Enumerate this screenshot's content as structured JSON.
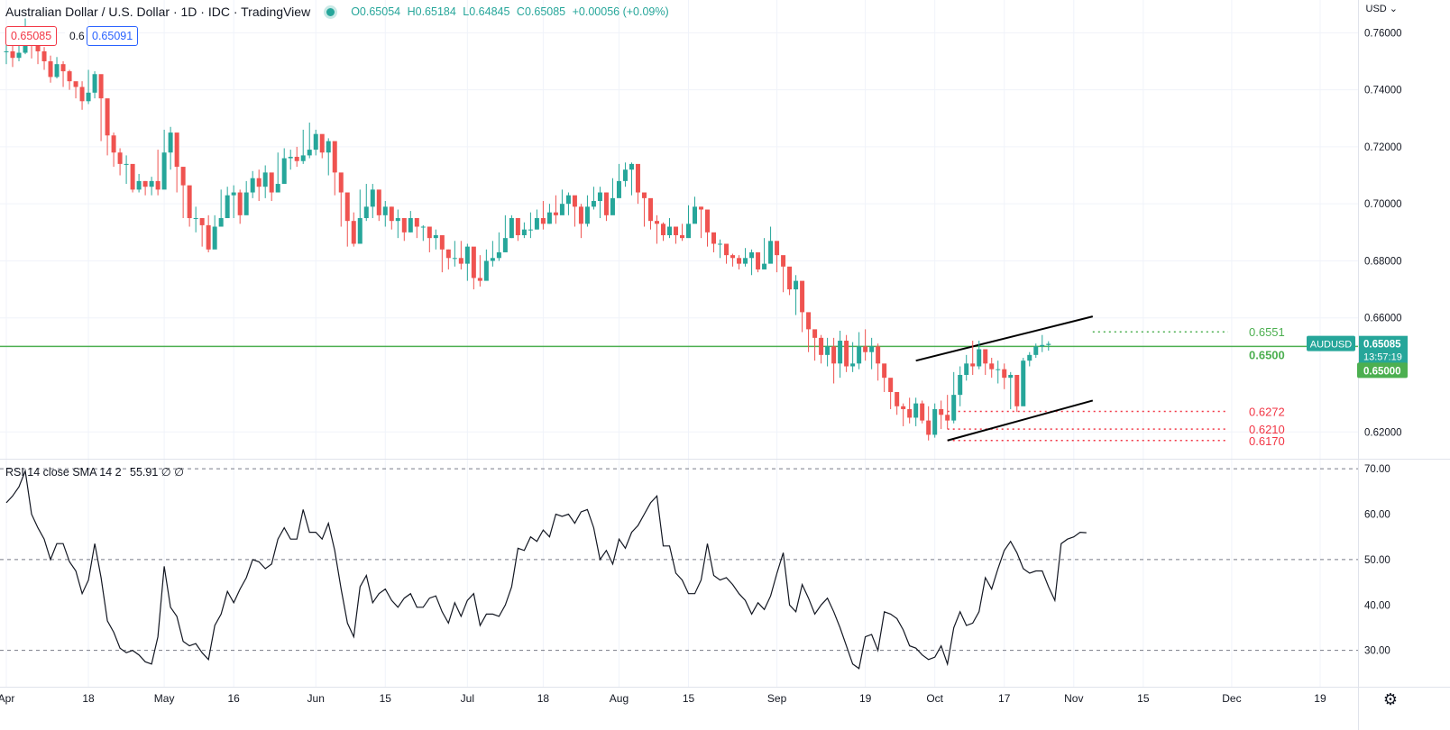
{
  "header": {
    "title": "Australian Dollar / U.S. Dollar · 1D · IDC · TradingView",
    "ohlc": {
      "open": "O0.65054",
      "high": "H0.65184",
      "low": "L0.64845",
      "close": "C0.65085",
      "change": "+0.00056 (+0.09%)"
    }
  },
  "trade": {
    "sell": "0.65085",
    "spread": "0.6",
    "buy": "0.65091"
  },
  "currency_label": "USD ⌄",
  "symbol_tag": "AUDUSD",
  "last_price": "0.65085",
  "countdown": "13:57:19",
  "level_tag": "0.65000",
  "colors": {
    "up": "#26a69a",
    "down": "#ef5350",
    "level": "#4caf50",
    "support": "#f23645"
  },
  "icons": {
    "settings": "gear-icon"
  },
  "chart_data": [
    {
      "type": "candlestick",
      "symbol": "AUDUSD",
      "x_ticks": [
        {
          "label": "Apr",
          "index": 0
        },
        {
          "label": "18",
          "index": 13
        },
        {
          "label": "May",
          "index": 25
        },
        {
          "label": "16",
          "index": 36
        },
        {
          "label": "Jun",
          "index": 49
        },
        {
          "label": "15",
          "index": 60
        },
        {
          "label": "Jul",
          "index": 73
        },
        {
          "label": "18",
          "index": 85
        },
        {
          "label": "Aug",
          "index": 97
        },
        {
          "label": "15",
          "index": 108
        },
        {
          "label": "Sep",
          "index": 122
        },
        {
          "label": "19",
          "index": 136
        },
        {
          "label": "Oct",
          "index": 147
        },
        {
          "label": "17",
          "index": 158
        },
        {
          "label": "Nov",
          "index": 169
        },
        {
          "label": "15",
          "index": 180
        },
        {
          "label": "Dec",
          "index": 194
        },
        {
          "label": "19",
          "index": 208
        }
      ],
      "x_range": [
        -1,
        214
      ],
      "y_ticks": [
        "0.76000",
        "0.74000",
        "0.72000",
        "0.70000",
        "0.68000",
        "0.66000",
        "0.62000"
      ],
      "ylim": [
        0.6106,
        0.7715
      ],
      "close": [
        0.7535,
        0.7512,
        0.753,
        0.7585,
        0.758,
        0.7535,
        0.75,
        0.7445,
        0.749,
        0.7465,
        0.743,
        0.741,
        0.736,
        0.739,
        0.7455,
        0.737,
        0.724,
        0.718,
        0.714,
        0.714,
        0.705,
        0.708,
        0.706,
        0.708,
        0.705,
        0.718,
        0.725,
        0.713,
        0.7065,
        0.695,
        0.695,
        0.6925,
        0.684,
        0.692,
        0.695,
        0.703,
        0.704,
        0.696,
        0.704,
        0.709,
        0.706,
        0.711,
        0.704,
        0.707,
        0.716,
        0.7165,
        0.715,
        0.717,
        0.719,
        0.7245,
        0.718,
        0.722,
        0.711,
        0.704,
        0.694,
        0.686,
        0.695,
        0.699,
        0.705,
        0.696,
        0.699,
        0.694,
        0.695,
        0.69,
        0.695,
        0.692,
        0.692,
        0.688,
        0.689,
        0.684,
        0.681,
        0.681,
        0.679,
        0.685,
        0.674,
        0.673,
        0.68,
        0.681,
        0.683,
        0.688,
        0.695,
        0.689,
        0.691,
        0.691,
        0.695,
        0.693,
        0.697,
        0.696,
        0.7,
        0.703,
        0.699,
        0.693,
        0.699,
        0.701,
        0.704,
        0.696,
        0.702,
        0.708,
        0.712,
        0.714,
        0.704,
        0.702,
        0.694,
        0.693,
        0.689,
        0.692,
        0.689,
        0.688,
        0.693,
        0.699,
        0.698,
        0.69,
        0.686,
        0.686,
        0.682,
        0.681,
        0.679,
        0.681,
        0.683,
        0.677,
        0.679,
        0.687,
        0.682,
        0.678,
        0.67,
        0.673,
        0.662,
        0.656,
        0.653,
        0.647,
        0.65,
        0.644,
        0.652,
        0.643,
        0.644,
        0.65,
        0.648,
        0.65,
        0.644,
        0.639,
        0.634,
        0.629,
        0.628,
        0.625,
        0.63,
        0.624,
        0.619,
        0.628,
        0.626,
        0.624,
        0.633,
        0.64,
        0.644,
        0.643,
        0.649,
        0.644,
        0.642,
        0.642,
        0.639,
        0.64,
        0.629,
        0.645,
        0.647,
        0.65,
        0.6505,
        0.6509
      ],
      "high": [
        0.7575,
        0.756,
        0.758,
        0.765,
        0.76,
        0.7595,
        0.755,
        0.752,
        0.7515,
        0.75,
        0.747,
        0.742,
        0.743,
        0.747,
        0.7465,
        0.738,
        0.73,
        0.725,
        0.7195,
        0.717,
        0.7105,
        0.7105,
        0.708,
        0.7095,
        0.719,
        0.726,
        0.727,
        0.715,
        0.709,
        0.699,
        0.699,
        0.6945,
        0.696,
        0.696,
        0.705,
        0.706,
        0.7065,
        0.705,
        0.708,
        0.7115,
        0.712,
        0.7135,
        0.7095,
        0.718,
        0.7195,
        0.719,
        0.72,
        0.726,
        0.7285,
        0.726,
        0.724,
        0.723,
        0.712,
        0.706,
        0.696,
        0.697,
        0.705,
        0.707,
        0.707,
        0.701,
        0.701,
        0.699,
        0.698,
        0.695,
        0.6975,
        0.694,
        0.6925,
        0.69,
        0.691,
        0.6865,
        0.684,
        0.687,
        0.687,
        0.686,
        0.677,
        0.682,
        0.684,
        0.687,
        0.69,
        0.696,
        0.696,
        0.693,
        0.6935,
        0.697,
        0.698,
        0.701,
        0.7,
        0.703,
        0.705,
        0.704,
        0.7005,
        0.7,
        0.703,
        0.706,
        0.706,
        0.704,
        0.709,
        0.714,
        0.7145,
        0.7145,
        0.705,
        0.703,
        0.697,
        0.696,
        0.6935,
        0.695,
        0.692,
        0.693,
        0.6995,
        0.7025,
        0.699,
        0.691,
        0.688,
        0.6875,
        0.685,
        0.6825,
        0.682,
        0.6845,
        0.684,
        0.68,
        0.688,
        0.692,
        0.684,
        0.68,
        0.676,
        0.675,
        0.665,
        0.66,
        0.655,
        0.654,
        0.653,
        0.653,
        0.6555,
        0.654,
        0.6515,
        0.655,
        0.656,
        0.653,
        0.651,
        0.642,
        0.637,
        0.632,
        0.63,
        0.632,
        0.632,
        0.631,
        0.629,
        0.63,
        0.631,
        0.633,
        0.641,
        0.643,
        0.647,
        0.652,
        0.652,
        0.649,
        0.646,
        0.645,
        0.644,
        0.641,
        0.64,
        0.646,
        0.648,
        0.651,
        0.654,
        0.6518
      ],
      "low": [
        0.749,
        0.748,
        0.75,
        0.7525,
        0.751,
        0.749,
        0.747,
        0.7425,
        0.744,
        0.741,
        0.74,
        0.737,
        0.733,
        0.735,
        0.737,
        0.722,
        0.717,
        0.713,
        0.71,
        0.707,
        0.704,
        0.704,
        0.703,
        0.703,
        0.703,
        0.716,
        0.712,
        0.704,
        0.695,
        0.692,
        0.69,
        0.685,
        0.683,
        0.686,
        0.693,
        0.696,
        0.695,
        0.693,
        0.699,
        0.702,
        0.701,
        0.702,
        0.701,
        0.705,
        0.712,
        0.712,
        0.713,
        0.714,
        0.716,
        0.717,
        0.716,
        0.71,
        0.703,
        0.692,
        0.685,
        0.685,
        0.692,
        0.694,
        0.695,
        0.694,
        0.692,
        0.691,
        0.688,
        0.687,
        0.69,
        0.688,
        0.687,
        0.683,
        0.684,
        0.676,
        0.677,
        0.678,
        0.677,
        0.673,
        0.67,
        0.671,
        0.675,
        0.678,
        0.68,
        0.685,
        0.688,
        0.687,
        0.688,
        0.688,
        0.691,
        0.691,
        0.693,
        0.693,
        0.697,
        0.696,
        0.692,
        0.688,
        0.692,
        0.698,
        0.695,
        0.694,
        0.697,
        0.706,
        0.706,
        0.703,
        0.7,
        0.692,
        0.691,
        0.686,
        0.687,
        0.688,
        0.686,
        0.687,
        0.691,
        0.696,
        0.688,
        0.685,
        0.683,
        0.681,
        0.679,
        0.678,
        0.677,
        0.678,
        0.675,
        0.676,
        0.677,
        0.68,
        0.676,
        0.669,
        0.668,
        0.661,
        0.655,
        0.648,
        0.645,
        0.644,
        0.643,
        0.637,
        0.639,
        0.641,
        0.641,
        0.642,
        0.645,
        0.642,
        0.638,
        0.634,
        0.628,
        0.626,
        0.622,
        0.623,
        0.622,
        0.623,
        0.617,
        0.618,
        0.621,
        0.621,
        0.623,
        0.629,
        0.638,
        0.64,
        0.642,
        0.64,
        0.639,
        0.637,
        0.635,
        0.628,
        0.627,
        0.638,
        0.643,
        0.646,
        0.648,
        0.6485
      ],
      "horizontal_levels": [
        {
          "label": "0.6551",
          "value": 0.6551,
          "style": "dotted",
          "color": "#4caf50"
        },
        {
          "label": "0.6500",
          "value": 0.65,
          "style": "solid",
          "color": "#4caf50"
        },
        {
          "label": "0.6272",
          "value": 0.6272,
          "style": "dotted",
          "color": "#f23645"
        },
        {
          "label": "0.6210",
          "value": 0.621,
          "style": "dotted",
          "color": "#f23645"
        },
        {
          "label": "0.6170",
          "value": 0.617,
          "style": "dotted",
          "color": "#f23645"
        }
      ],
      "channel_lines": [
        {
          "from": [
            144,
            0.645
          ],
          "to": [
            172,
            0.6605
          ]
        },
        {
          "from": [
            149,
            0.617
          ],
          "to": [
            172,
            0.631
          ]
        }
      ]
    },
    {
      "type": "line",
      "name": "RSI",
      "indicator_label": "RSI 14 close SMA 14 2",
      "indicator_value": "55.91",
      "indicator_extra": "∅ ∅",
      "ylim": [
        22,
        72
      ],
      "y_ticks": [
        "70.00",
        "60.00",
        "50.00",
        "40.00",
        "30.00"
      ],
      "bands": [
        70,
        50,
        30
      ],
      "values": [
        62.5,
        64,
        66,
        69.5,
        60,
        57,
        54.5,
        50,
        53.5,
        53.5,
        49.5,
        47.5,
        42.5,
        45.5,
        53.5,
        46,
        36.5,
        34,
        30.5,
        29.5,
        30,
        29,
        27.5,
        27,
        33,
        48.5,
        39.5,
        37.5,
        32,
        31,
        31.5,
        29.5,
        28,
        35.5,
        38,
        43,
        40.5,
        43.5,
        46,
        50,
        49.5,
        48,
        49,
        54.5,
        57,
        54.5,
        54.5,
        61,
        56,
        56,
        54.5,
        58,
        52,
        43.5,
        36,
        33,
        44,
        46.5,
        40.5,
        42.5,
        43.5,
        41,
        39.5,
        41.5,
        42.5,
        39.5,
        39.5,
        41.5,
        42,
        38.5,
        36,
        40.5,
        37.5,
        41,
        42.5,
        35.5,
        38,
        38,
        37.5,
        40,
        44,
        52.5,
        52,
        55,
        54,
        56.5,
        55,
        60,
        59.5,
        60,
        58,
        60.5,
        61,
        57,
        50,
        52,
        49,
        54.5,
        52.5,
        56,
        57.5,
        60,
        62.5,
        64,
        53,
        53,
        47,
        45.5,
        42.5,
        42.5,
        45.5,
        53.5,
        46.5,
        45.5,
        46,
        44.5,
        42.5,
        41,
        38,
        40.5,
        39,
        42,
        47,
        51.5,
        40,
        38.5,
        44.5,
        41.5,
        38,
        40,
        41.5,
        38.5,
        35,
        31,
        27,
        26,
        33,
        33.5,
        30,
        38.5,
        38,
        37,
        34.5,
        31,
        30.5,
        29,
        28,
        28.5,
        31,
        27,
        35,
        38.5,
        35.5,
        36,
        38.5,
        46,
        43.5,
        48,
        52,
        54,
        51.5,
        48,
        47,
        47.5,
        47.5,
        44,
        41,
        53.5,
        54.5,
        55,
        56,
        55.91
      ]
    }
  ]
}
